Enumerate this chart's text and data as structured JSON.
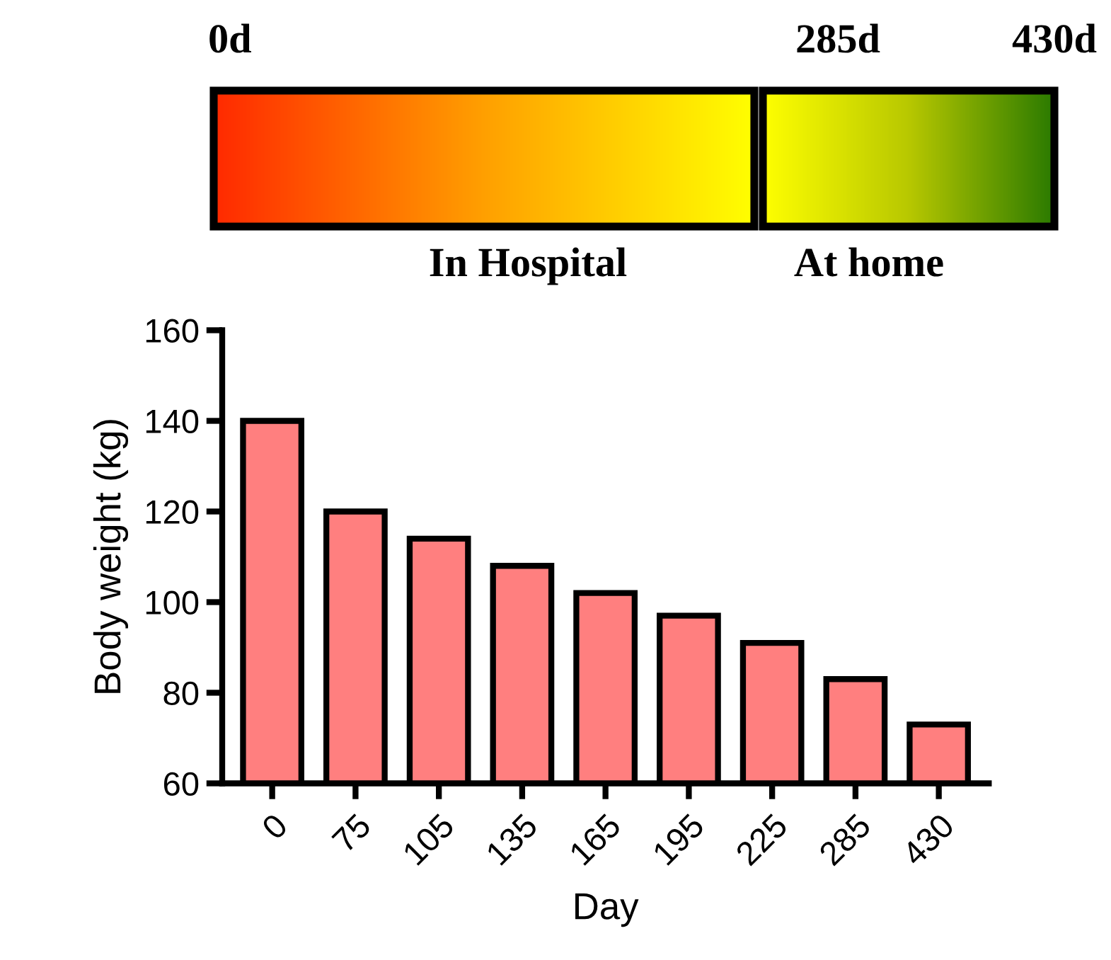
{
  "chart_data": {
    "type": "bar",
    "xlabel": "Day",
    "ylabel": "Body weight (kg)",
    "categories": [
      "0",
      "75",
      "105",
      "135",
      "165",
      "195",
      "225",
      "285",
      "430"
    ],
    "values": [
      140,
      120,
      114,
      108,
      102,
      97,
      91,
      83,
      73
    ],
    "color": "#ff7f7f",
    "ylim": [
      60,
      160
    ],
    "yticks": [
      60,
      80,
      100,
      120,
      140,
      160
    ],
    "grid": false,
    "legend": false,
    "annotations": [
      "0d",
      "285d",
      "430d",
      "In Hospital",
      "At home"
    ]
  }
}
